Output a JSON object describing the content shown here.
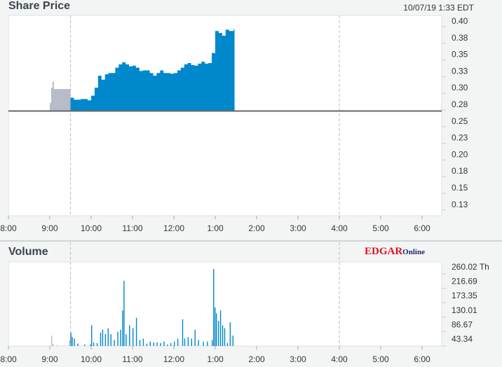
{
  "price_panel": {
    "title": "Share Price",
    "timestamp": "10/07/19  1:33 EDT"
  },
  "volume_panel": {
    "title": "Volume",
    "logo_main": "EDGAR",
    "logo_sub": "Online"
  },
  "chart_data": [
    {
      "type": "area",
      "title": "Share Price",
      "x_ticks": [
        "8:00",
        "9:00",
        "10:00",
        "11:00",
        "12:00",
        "1:00",
        "2:00",
        "3:00",
        "4:00",
        "5:00",
        "6:00"
      ],
      "y_ticks": [
        "0.40",
        "0.38",
        "0.35",
        "0.33",
        "0.30",
        "0.28",
        "0.25",
        "0.23",
        "0.20",
        "0.18",
        "0.15",
        "0.13"
      ],
      "ylim": [
        0.125,
        0.4
      ],
      "baseline": 0.265,
      "session_markers": [
        "9:30",
        "4:00"
      ],
      "series": [
        {
          "session": "pre-market",
          "color": "#b8bcc8",
          "points": [
            [
              "9:00",
              0.277
            ],
            [
              "9:02",
              0.3
            ],
            [
              "9:04",
              0.309
            ],
            [
              "9:06",
              0.298
            ],
            [
              "9:29",
              0.298
            ]
          ]
        },
        {
          "session": "regular",
          "color": "#0088cc",
          "points": [
            [
              "9:30",
              0.285
            ],
            [
              "9:35",
              0.282
            ],
            [
              "9:45",
              0.283
            ],
            [
              "9:55",
              0.281
            ],
            [
              "10:00",
              0.288
            ],
            [
              "10:05",
              0.3
            ],
            [
              "10:10",
              0.318
            ],
            [
              "10:15",
              0.312
            ],
            [
              "10:20",
              0.32
            ],
            [
              "10:25",
              0.322
            ],
            [
              "10:35",
              0.33
            ],
            [
              "10:40",
              0.335
            ],
            [
              "10:45",
              0.338
            ],
            [
              "10:50",
              0.335
            ],
            [
              "10:55",
              0.332
            ],
            [
              "11:00",
              0.333
            ],
            [
              "11:05",
              0.33
            ],
            [
              "11:10",
              0.325
            ],
            [
              "11:15",
              0.326
            ],
            [
              "11:20",
              0.326
            ],
            [
              "11:25",
              0.322
            ],
            [
              "11:30",
              0.318
            ],
            [
              "11:35",
              0.322
            ],
            [
              "11:40",
              0.326
            ],
            [
              "11:45",
              0.322
            ],
            [
              "11:50",
              0.322
            ],
            [
              "11:55",
              0.321
            ],
            [
              "12:00",
              0.322
            ],
            [
              "12:05",
              0.326
            ],
            [
              "12:10",
              0.33
            ],
            [
              "12:15",
              0.335
            ],
            [
              "12:20",
              0.337
            ],
            [
              "12:25",
              0.334
            ],
            [
              "12:30",
              0.333
            ],
            [
              "12:35",
              0.336
            ],
            [
              "12:40",
              0.339
            ],
            [
              "12:45",
              0.336
            ],
            [
              "12:50",
              0.337
            ],
            [
              "12:55",
              0.352
            ],
            [
              "1:00",
              0.385
            ],
            [
              "1:05",
              0.382
            ],
            [
              "1:10",
              0.378
            ],
            [
              "1:15",
              0.387
            ],
            [
              "1:20",
              0.385
            ],
            [
              "1:27",
              0.388
            ]
          ]
        }
      ]
    },
    {
      "type": "bar",
      "title": "Volume",
      "x_ticks": [
        "8:00",
        "9:00",
        "10:00",
        "11:00",
        "12:00",
        "1:00",
        "2:00",
        "3:00",
        "4:00",
        "5:00",
        "6:00"
      ],
      "y_ticks": [
        "260.02 Th",
        "216.69",
        "173.35",
        "130.01",
        "86.67",
        "43.34"
      ],
      "ylim": [
        0,
        270
      ],
      "series": [
        {
          "session": "pre-market",
          "color": "#b8bcc8",
          "points": [
            [
              "9:02",
              35
            ],
            [
              "9:04",
              8
            ],
            [
              "9:10",
              3
            ],
            [
              "9:20",
              3
            ],
            [
              "9:28",
              20
            ]
          ]
        },
        {
          "session": "regular",
          "color": "#0088cc",
          "points": [
            [
              "9:30",
              45
            ],
            [
              "9:32",
              30
            ],
            [
              "9:35",
              25
            ],
            [
              "9:40",
              8
            ],
            [
              "9:50",
              5
            ],
            [
              "9:58",
              5
            ],
            [
              "10:00",
              70
            ],
            [
              "10:03",
              12
            ],
            [
              "10:08",
              10
            ],
            [
              "10:13",
              45
            ],
            [
              "10:16",
              55
            ],
            [
              "10:20",
              40
            ],
            [
              "10:24",
              60
            ],
            [
              "10:28",
              40
            ],
            [
              "10:33",
              20
            ],
            [
              "10:38",
              48
            ],
            [
              "10:42",
              55
            ],
            [
              "10:45",
              120
            ],
            [
              "10:47",
              220
            ],
            [
              "10:50",
              40
            ],
            [
              "10:55",
              70
            ],
            [
              "11:00",
              60
            ],
            [
              "11:05",
              95
            ],
            [
              "11:10",
              20
            ],
            [
              "11:15",
              25
            ],
            [
              "11:20",
              8
            ],
            [
              "11:25",
              15
            ],
            [
              "11:30",
              12
            ],
            [
              "11:35",
              12
            ],
            [
              "11:40",
              10
            ],
            [
              "11:45",
              15
            ],
            [
              "11:50",
              5
            ],
            [
              "11:55",
              10
            ],
            [
              "12:00",
              15
            ],
            [
              "12:05",
              25
            ],
            [
              "12:12",
              90
            ],
            [
              "12:15",
              25
            ],
            [
              "12:20",
              30
            ],
            [
              "12:25",
              25
            ],
            [
              "12:30",
              55
            ],
            [
              "12:35",
              20
            ],
            [
              "12:42",
              15
            ],
            [
              "12:48",
              15
            ],
            [
              "12:55",
              20
            ],
            [
              "12:57",
              260
            ],
            [
              "12:59",
              130
            ],
            [
              "1:01",
              110
            ],
            [
              "1:04",
              85
            ],
            [
              "1:07",
              120
            ],
            [
              "1:10",
              70
            ],
            [
              "1:13",
              60
            ],
            [
              "1:17",
              10
            ],
            [
              "1:21",
              80
            ],
            [
              "1:25",
              35
            ]
          ]
        }
      ]
    }
  ]
}
